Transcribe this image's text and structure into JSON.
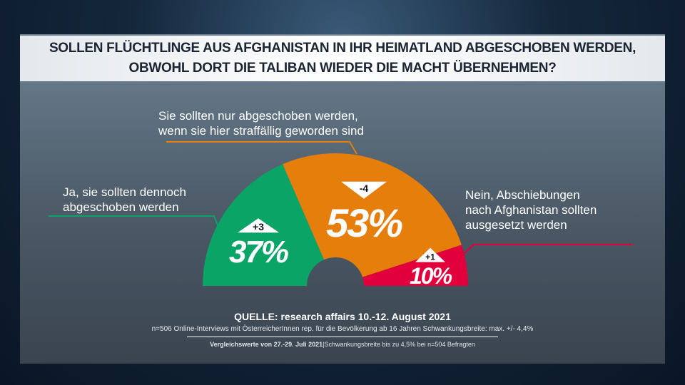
{
  "title": {
    "line1": "SOLLEN FLÜCHTLINGE AUS AFGHANISTAN IN IHR HEIMATLAND ABGESCHOBEN WERDEN,",
    "line2": "OBWOHL DORT DIE TALIBAN WIEDER DIE MACHT ÜBERNEHMEN?"
  },
  "chart_data": {
    "type": "pie",
    "variant": "half-donut",
    "slices": [
      {
        "label_line1": "Ja, sie sollten dennoch",
        "label_line2": "abgeschoben werden",
        "label_line3": "",
        "value": 37,
        "value_label": "37%",
        "change": "+3",
        "color": "#0aa566"
      },
      {
        "label_line1": "Sie sollten nur abgeschoben werden,",
        "label_line2": "wenn sie hier straffällig geworden sind",
        "label_line3": "",
        "value": 53,
        "value_label": "53%",
        "change": "-4",
        "color": "#e57e0b"
      },
      {
        "label_line1": "Nein, Abschiebungen",
        "label_line2": "nach Afghanistan sollten",
        "label_line3": "ausgesetzt werden",
        "value": 10,
        "value_label": "10%",
        "change": "+1",
        "color": "#e2003c"
      }
    ]
  },
  "source": {
    "main": "QUELLE: research affairs 10.-12. August 2021",
    "detail": "n=506 Online-Interviews mit ÖsterreicherInnen rep. für die Bevölkerung ab 16 Jahren  Schwankungsbreite: max. +/- 4,4%",
    "compare_bold": "Vergleichswerte von  27.-29.  Juli 2021",
    "compare_rest": "|Schwankungsbreite bis zu 4,5% bei n=504 Befragten"
  }
}
